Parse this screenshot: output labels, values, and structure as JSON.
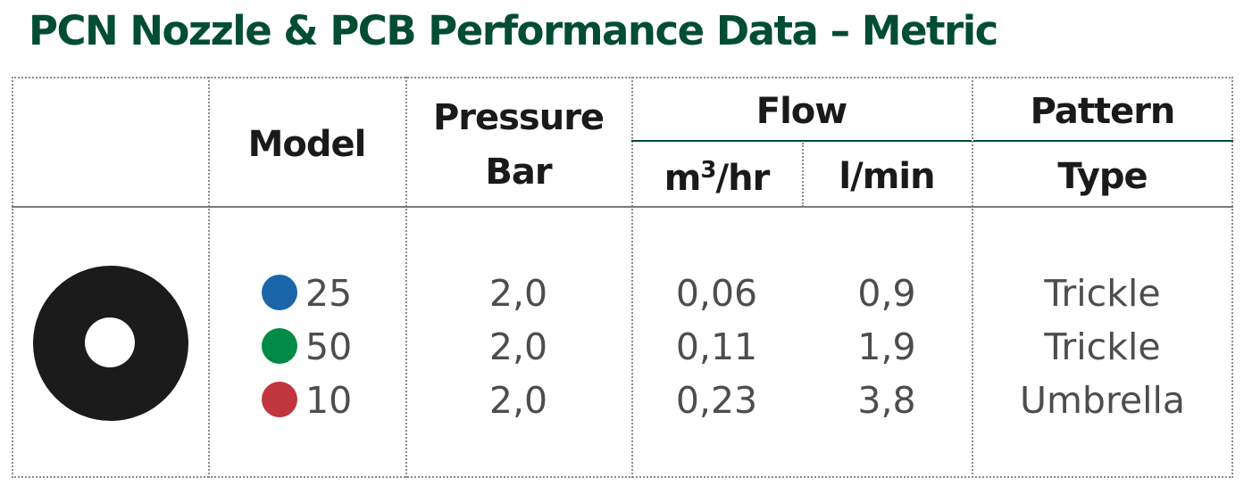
{
  "title": "PCN Nozzle & PCB Performance Data – Metric",
  "headers": {
    "model": "Model",
    "pressure_line1": "Pressure",
    "pressure_line2": "Bar",
    "flow": "Flow",
    "flow_m3_prefix": "m",
    "flow_m3_sup": "3",
    "flow_m3_suffix": "/hr",
    "flow_lmin": "l/min",
    "pattern_line1": "Pattern",
    "pattern_line2": "Type"
  },
  "colors": {
    "title": "#014d33",
    "rule_green": "#014d33",
    "nozzle": "#1b1b1b"
  },
  "nozzle_icon": "ring-nozzle-icon",
  "rows": [
    {
      "color": "#1a66a8",
      "model": "25",
      "pressure": "2,0",
      "m3hr": "0,06",
      "lmin": "0,9",
      "pattern": "Trickle"
    },
    {
      "color": "#008a45",
      "model": "50",
      "pressure": "2,0",
      "m3hr": "0,11",
      "lmin": "1,9",
      "pattern": "Trickle"
    },
    {
      "color": "#c1353f",
      "model": "10",
      "pressure": "2,0",
      "m3hr": "0,23",
      "lmin": "3,8",
      "pattern": "Umbrella"
    }
  ]
}
